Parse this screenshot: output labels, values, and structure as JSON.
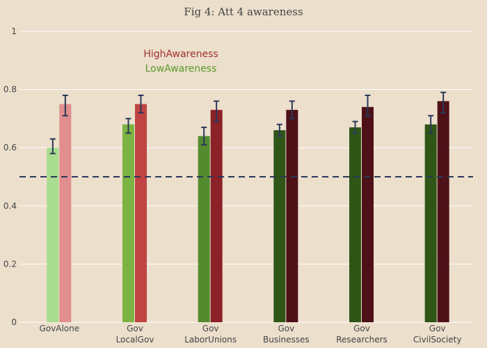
{
  "chart_data": {
    "type": "bar",
    "title": "Fig 4: Att 4 awareness",
    "xlabel": "",
    "ylabel": "",
    "ylim": [
      0,
      1
    ],
    "yticks": [
      "0",
      "0.2",
      "0.4",
      "0.6",
      "0.8",
      "1"
    ],
    "ytick_values": [
      0,
      0.2,
      0.4,
      0.6,
      0.8,
      1
    ],
    "reference_line": 0.5,
    "categories": [
      [
        "GovAlone"
      ],
      [
        "Gov",
        "LocalGov"
      ],
      [
        "Gov",
        "LaborUnions"
      ],
      [
        "Gov",
        "Businesses"
      ],
      [
        "Gov",
        "Researchers"
      ],
      [
        "Gov",
        "CivilSociety"
      ]
    ],
    "series": [
      {
        "name": "LowAwareness",
        "values": [
          0.6,
          0.68,
          0.64,
          0.66,
          0.67,
          0.68
        ],
        "err_low": [
          0.58,
          0.65,
          0.61,
          0.64,
          0.65,
          0.65
        ],
        "err_high": [
          0.63,
          0.7,
          0.67,
          0.68,
          0.69,
          0.71
        ],
        "colors": [
          "#a8dc8e",
          "#7cb342",
          "#558b2f",
          "#2f5616",
          "#2f5616",
          "#2f5616"
        ]
      },
      {
        "name": "HighAwareness",
        "values": [
          0.75,
          0.75,
          0.73,
          0.73,
          0.74,
          0.76
        ],
        "err_low": [
          0.71,
          0.72,
          0.69,
          0.7,
          0.71,
          0.72
        ],
        "err_high": [
          0.78,
          0.78,
          0.76,
          0.76,
          0.78,
          0.79
        ],
        "colors": [
          "#e08e8e",
          "#c04444",
          "#8b2228",
          "#4e1118",
          "#4e1118",
          "#4e1118"
        ]
      }
    ],
    "legend": {
      "position": "top-left",
      "entries": [
        {
          "label": "HighAwareness",
          "color": "#a03030"
        },
        {
          "label": "LowAwareness",
          "color": "#5a9a2a"
        }
      ]
    },
    "colors": {
      "background": "#ecdfcc",
      "grid": "#ffffff",
      "error_bar": "#2a3858",
      "reference_line": "#2a3858"
    }
  }
}
